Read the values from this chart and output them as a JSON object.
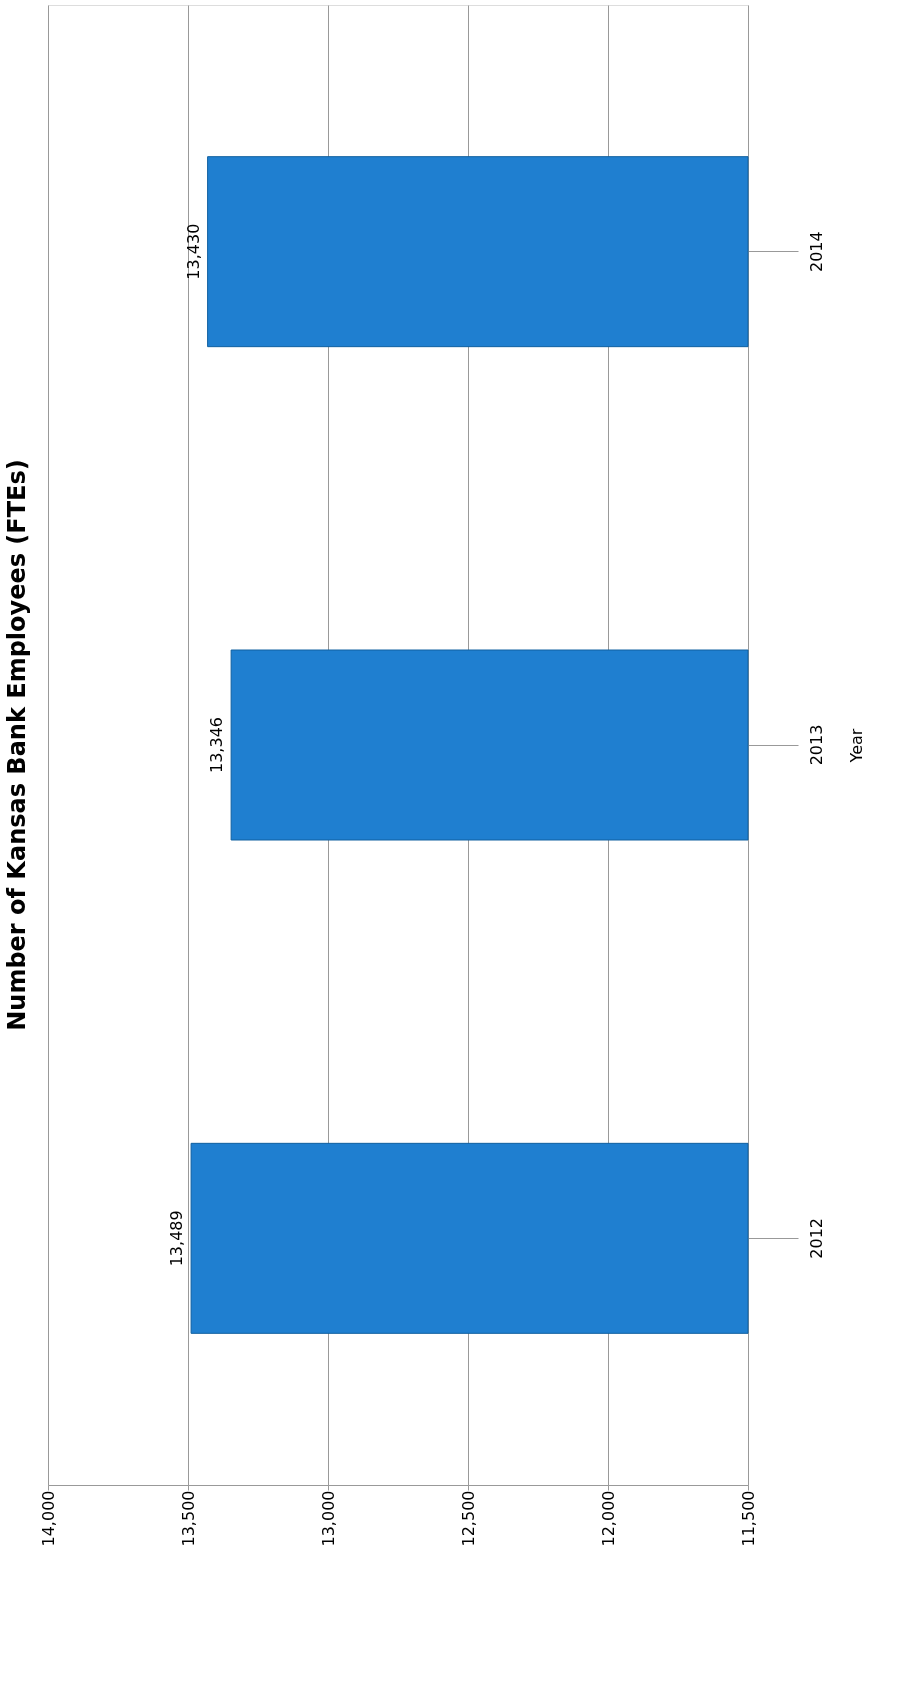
{
  "chart_data": {
    "type": "bar",
    "orientation": "horizontal",
    "title": "Number of Kansas Bank Employees (FTEs)",
    "ylabel": "Year",
    "categories": [
      "2014",
      "2013",
      "2012"
    ],
    "values": [
      13430,
      13346,
      13489
    ],
    "color": "#1f7fd0",
    "xlim": [
      14000,
      11500
    ],
    "xticks": [
      {
        "value": 14000,
        "label": "14,000"
      },
      {
        "value": 13500,
        "label": "13,500"
      },
      {
        "value": 13000,
        "label": "13,000"
      },
      {
        "value": 12500,
        "label": "12,500"
      },
      {
        "value": 12000,
        "label": "12,000"
      },
      {
        "value": 11500,
        "label": "11,500"
      }
    ],
    "value_labels": [
      "13,430",
      "13,346",
      "13,489"
    ],
    "grid": "x"
  }
}
